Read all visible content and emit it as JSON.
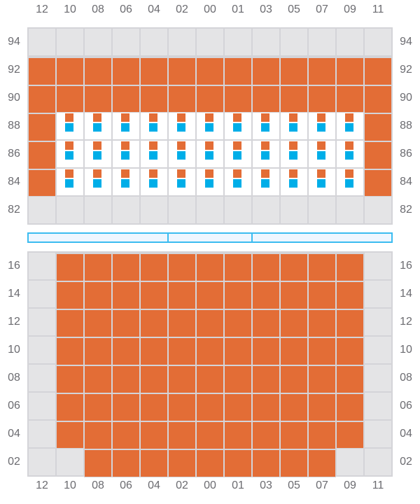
{
  "columns": [
    "12",
    "10",
    "08",
    "06",
    "04",
    "02",
    "00",
    "01",
    "03",
    "05",
    "07",
    "09",
    "11"
  ],
  "colors": {
    "orange_marker": "#e36d36",
    "blue_marker": "#00aee8",
    "disabled_cell": "#e4e4e6",
    "grid_line": "#d4d4d8",
    "bar_border": "#3bbcf0"
  },
  "legend_codes": {
    "d": "disabled",
    "o": "orange marker",
    "ob": "orange + blue marker",
    "": "empty"
  },
  "top_section": {
    "rows": [
      {
        "label": "94",
        "cells": [
          "d",
          "d",
          "d",
          "d",
          "d",
          "d",
          "d",
          "d",
          "d",
          "d",
          "d",
          "d",
          "d"
        ]
      },
      {
        "label": "92",
        "cells": [
          "o",
          "o",
          "o",
          "o",
          "o",
          "o",
          "o",
          "o",
          "o",
          "o",
          "o",
          "o",
          "o"
        ]
      },
      {
        "label": "90",
        "cells": [
          "o",
          "o",
          "o",
          "o",
          "o",
          "o",
          "o",
          "o",
          "o",
          "o",
          "o",
          "o",
          "o"
        ]
      },
      {
        "label": "88",
        "cells": [
          "o",
          "ob",
          "ob",
          "ob",
          "ob",
          "ob",
          "ob",
          "ob",
          "ob",
          "ob",
          "ob",
          "ob",
          "o"
        ]
      },
      {
        "label": "86",
        "cells": [
          "o",
          "ob",
          "ob",
          "ob",
          "ob",
          "ob",
          "ob",
          "ob",
          "ob",
          "ob",
          "ob",
          "ob",
          "o"
        ]
      },
      {
        "label": "84",
        "cells": [
          "o",
          "ob",
          "ob",
          "ob",
          "ob",
          "ob",
          "ob",
          "ob",
          "ob",
          "ob",
          "ob",
          "ob",
          "o"
        ]
      },
      {
        "label": "82",
        "cells": [
          "d",
          "d",
          "d",
          "d",
          "d",
          "d",
          "d",
          "d",
          "d",
          "d",
          "d",
          "d",
          "d"
        ]
      }
    ]
  },
  "divider_bar": {
    "segments_columns": [
      5,
      3,
      5
    ]
  },
  "bottom_section": {
    "rows": [
      {
        "label": "16",
        "cells": [
          "d",
          "o",
          "o",
          "o",
          "o",
          "o",
          "o",
          "o",
          "o",
          "o",
          "o",
          "o",
          "d"
        ]
      },
      {
        "label": "14",
        "cells": [
          "d",
          "o",
          "o",
          "o",
          "o",
          "o",
          "o",
          "o",
          "o",
          "o",
          "o",
          "o",
          "d"
        ]
      },
      {
        "label": "12",
        "cells": [
          "d",
          "o",
          "o",
          "o",
          "o",
          "o",
          "o",
          "o",
          "o",
          "o",
          "o",
          "o",
          "d"
        ]
      },
      {
        "label": "10",
        "cells": [
          "d",
          "o",
          "o",
          "o",
          "o",
          "o",
          "o",
          "o",
          "o",
          "o",
          "o",
          "o",
          "d"
        ]
      },
      {
        "label": "08",
        "cells": [
          "d",
          "o",
          "o",
          "o",
          "o",
          "o",
          "o",
          "o",
          "o",
          "o",
          "o",
          "o",
          "d"
        ]
      },
      {
        "label": "06",
        "cells": [
          "d",
          "o",
          "o",
          "o",
          "o",
          "o",
          "o",
          "o",
          "o",
          "o",
          "o",
          "o",
          "d"
        ]
      },
      {
        "label": "04",
        "cells": [
          "d",
          "o",
          "o",
          "o",
          "o",
          "o",
          "o",
          "o",
          "o",
          "o",
          "o",
          "o",
          "d"
        ]
      },
      {
        "label": "02",
        "cells": [
          "d",
          "d",
          "o",
          "o",
          "o",
          "o",
          "o",
          "o",
          "o",
          "o",
          "o",
          "d",
          "d"
        ]
      }
    ]
  }
}
